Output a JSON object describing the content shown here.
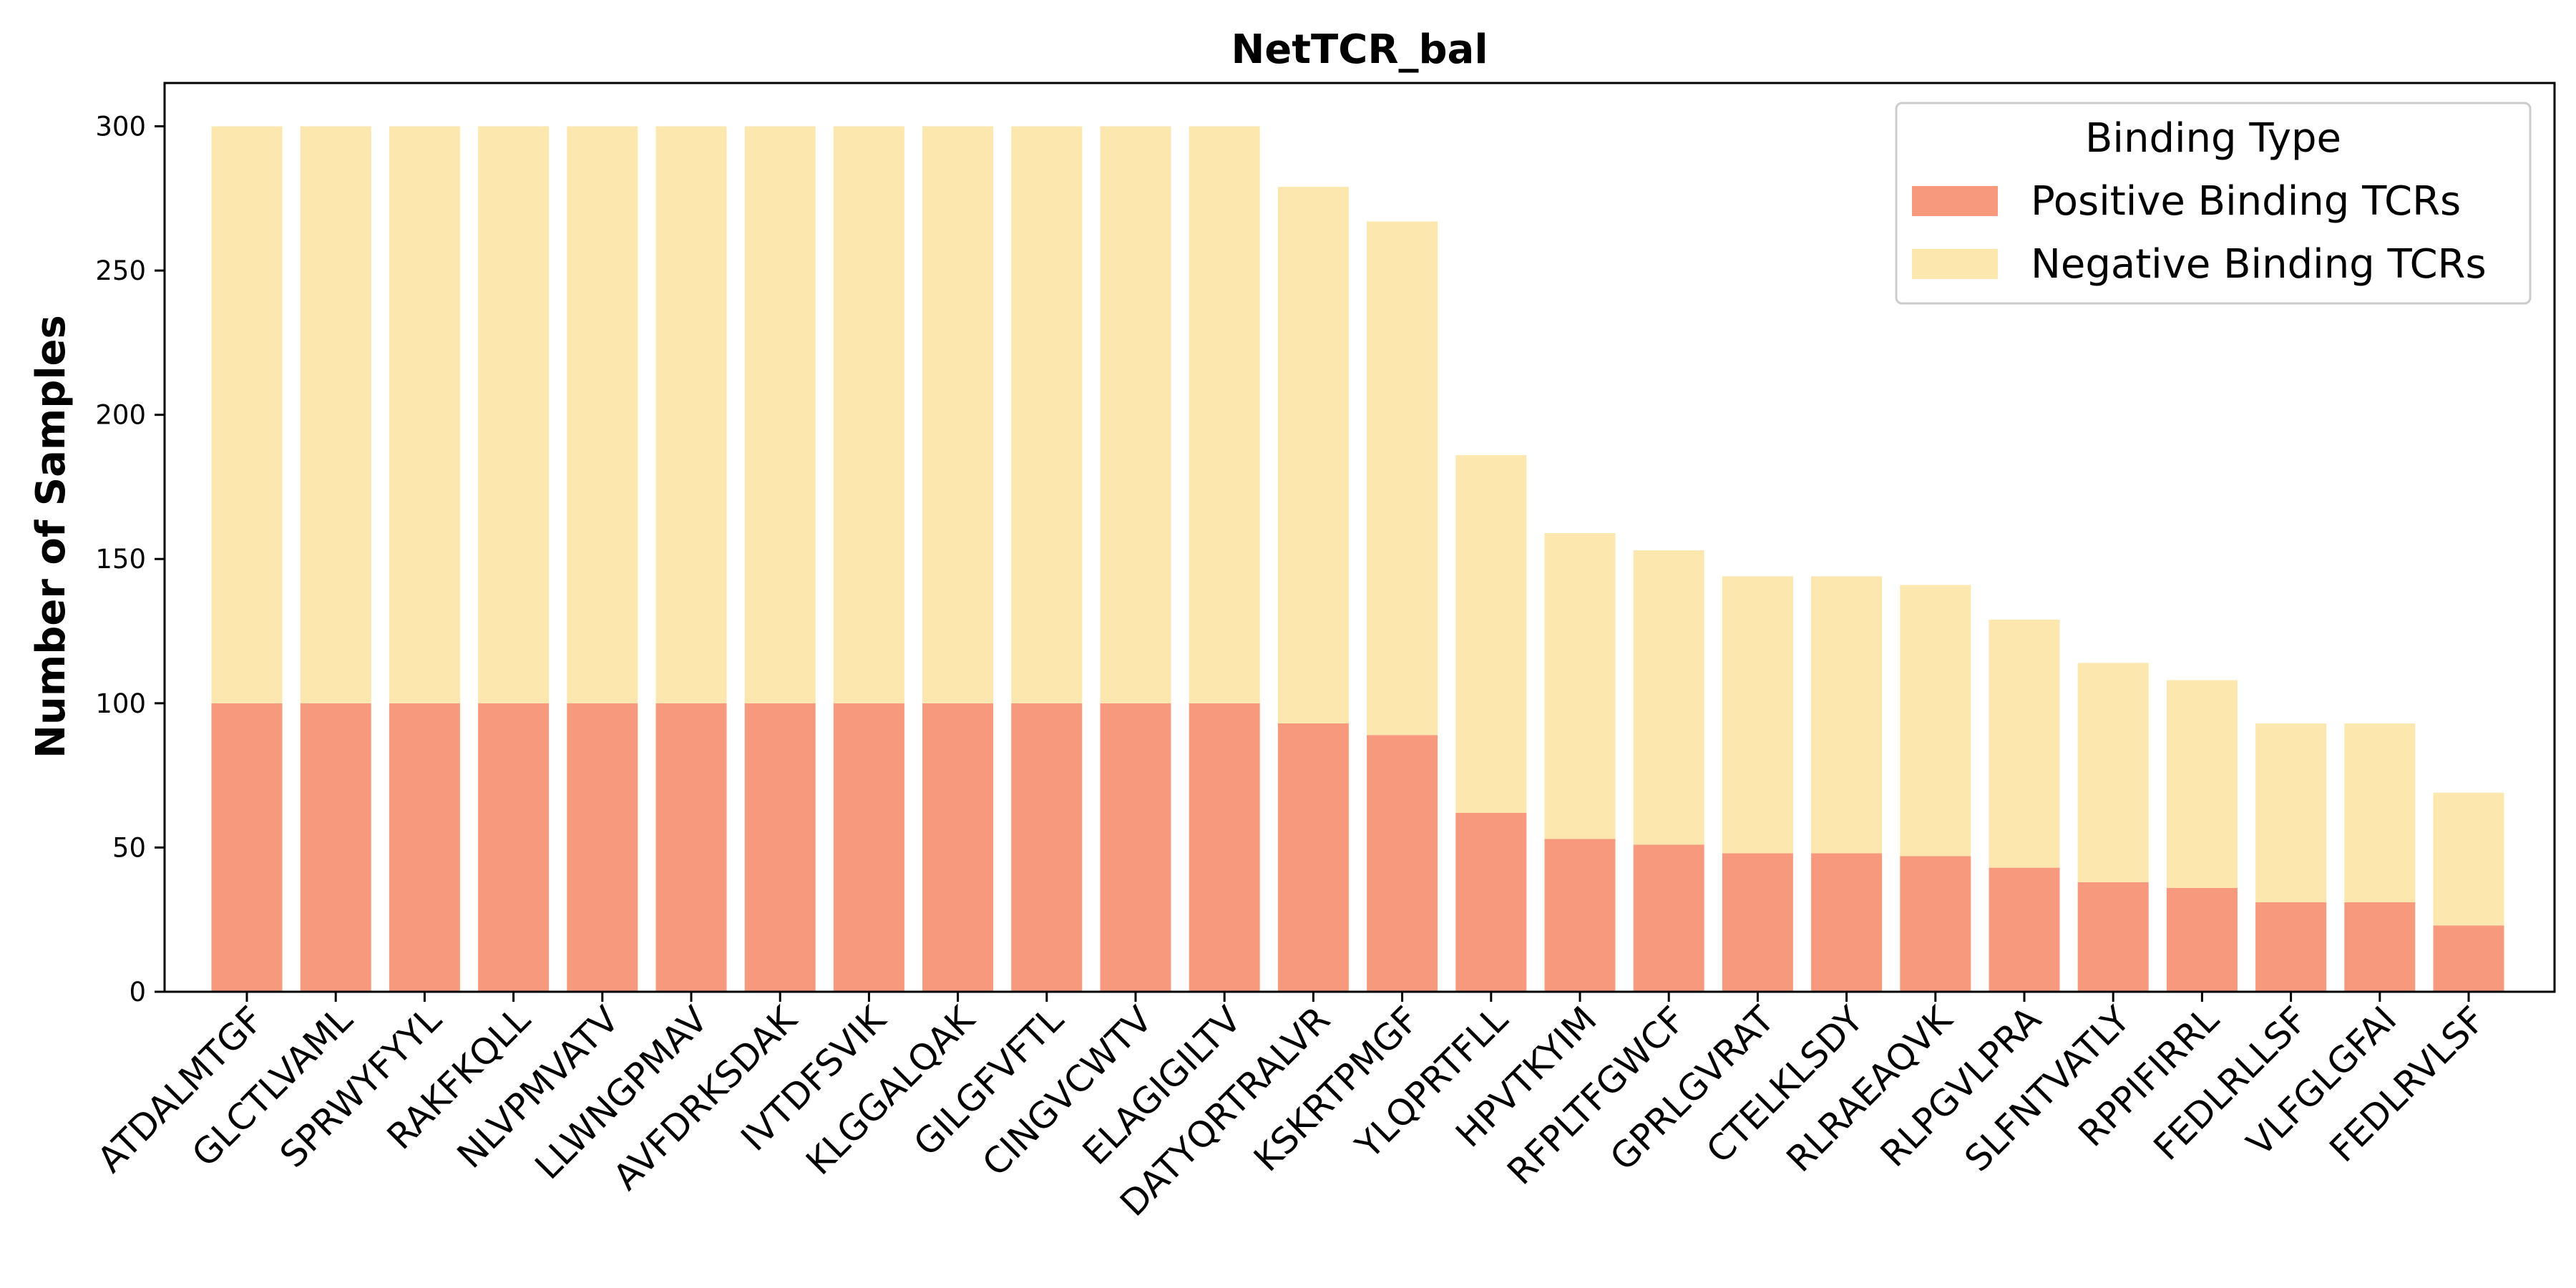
{
  "chart_data": {
    "type": "bar",
    "stacked": true,
    "title": "NetTCR_bal",
    "xlabel": "",
    "ylabel": "Number of Samples",
    "ylim": [
      0,
      315
    ],
    "yticks": [
      0,
      50,
      100,
      150,
      200,
      250,
      300
    ],
    "grid": false,
    "legend": {
      "title": "Binding Type",
      "position": "top-right"
    },
    "categories": [
      "ATDALMTGF",
      "GLCTLVAML",
      "SPRWYFYYL",
      "RAKFKQLL",
      "NLVPMVATV",
      "LLWNGPMAV",
      "AVFDRKSDAK",
      "IVTDFSVIK",
      "KLGGALQAK",
      "GILGFVFTL",
      "CINGVCWTV",
      "ELAGIGILTV",
      "DATYQRTRALVR",
      "KSKRTPMGF",
      "YLQPRTFLL",
      "HPVTKYIM",
      "RFPLTFGWCF",
      "GPRLGVRAT",
      "CTELKLSDY",
      "RLRAEAQVK",
      "RLPGVLPRA",
      "SLFNTVATLY",
      "RPPIFIRRL",
      "FEDLRLLSF",
      "VLFGLGFAI",
      "FEDLRVLSF"
    ],
    "series": [
      {
        "name": "Positive Binding TCRs",
        "color": "#f7997c",
        "values": [
          100,
          100,
          100,
          100,
          100,
          100,
          100,
          100,
          100,
          100,
          100,
          100,
          93,
          89,
          62,
          53,
          51,
          48,
          48,
          47,
          43,
          38,
          36,
          31,
          31,
          23
        ]
      },
      {
        "name": "Negative Binding TCRs",
        "color": "#fce7ae",
        "values": [
          200,
          200,
          200,
          200,
          200,
          200,
          200,
          200,
          200,
          200,
          200,
          200,
          186,
          178,
          124,
          106,
          102,
          96,
          96,
          94,
          86,
          76,
          72,
          62,
          62,
          46
        ]
      }
    ]
  }
}
